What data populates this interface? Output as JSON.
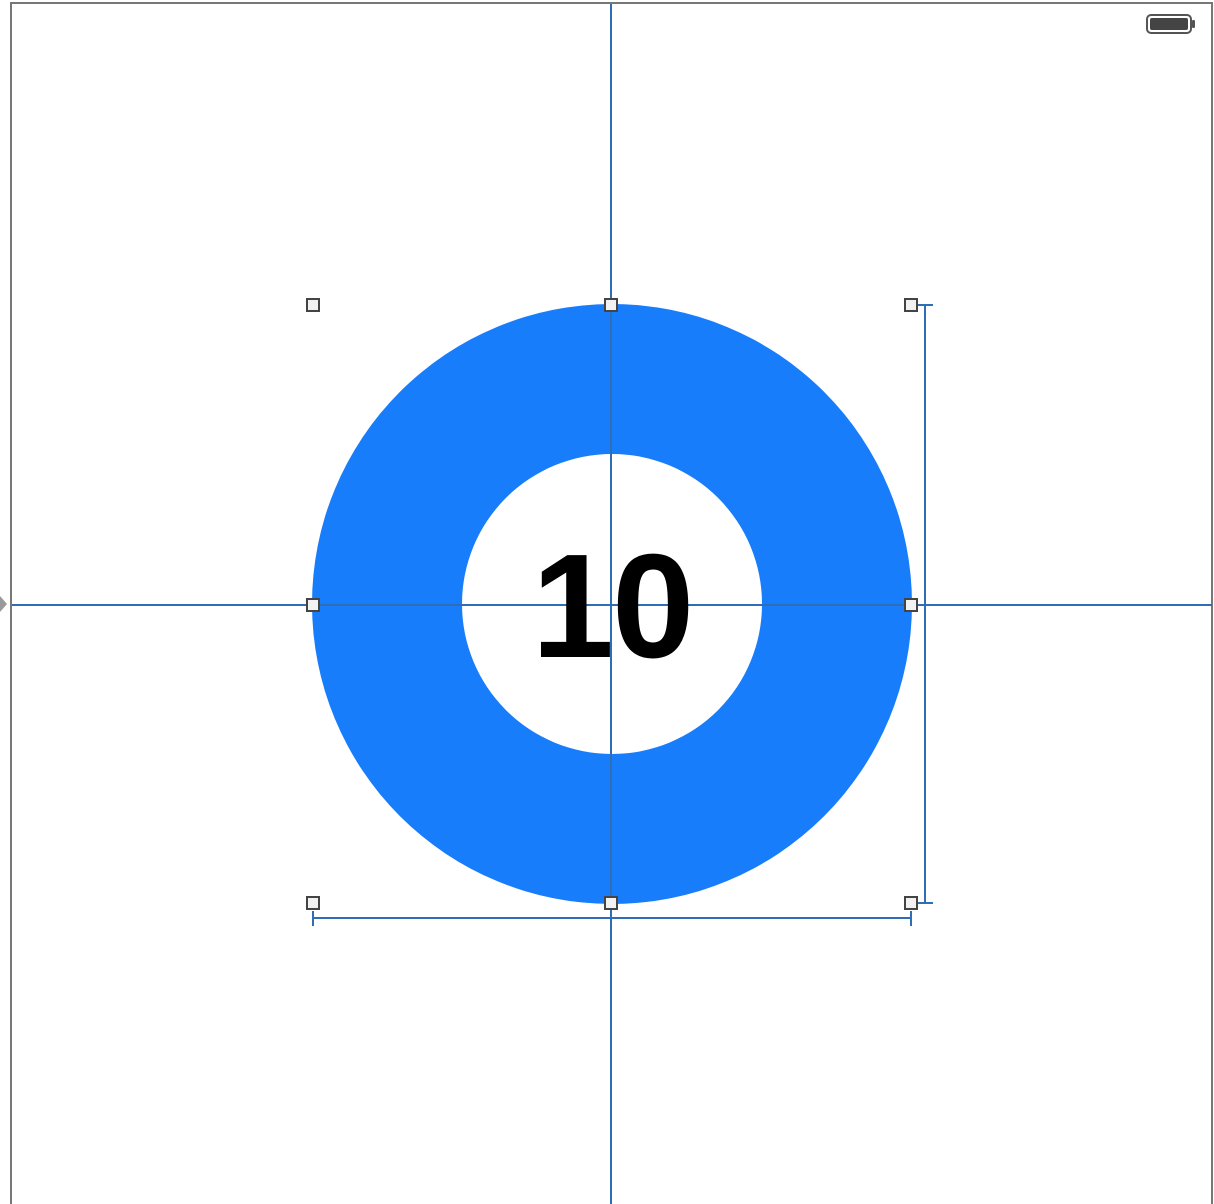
{
  "view": {
    "counter_value": "10"
  },
  "status_bar": {
    "battery_icon": "battery-full-icon"
  },
  "colors": {
    "ring": "#187DFA",
    "guide": "#2F6DB5",
    "frame": "#777777",
    "handle_stroke": "#444444",
    "handle_fill": "#F2F2F2",
    "text": "#000000"
  }
}
